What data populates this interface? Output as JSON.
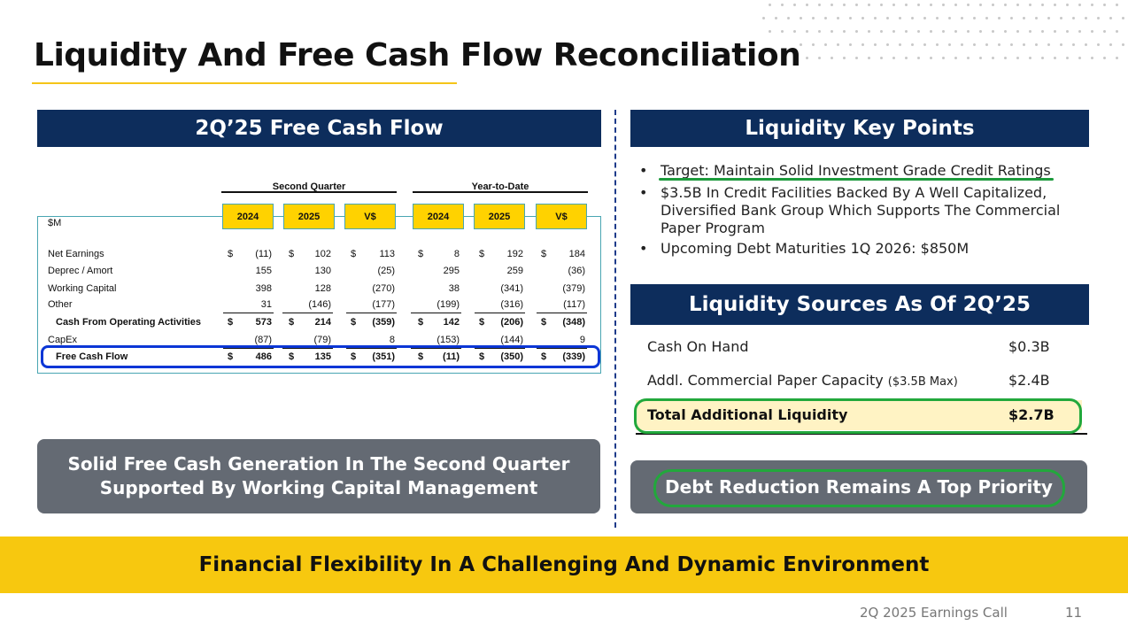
{
  "slide_title": "Liquidity And Free Cash Flow Reconciliation",
  "left_panel": {
    "header": "2Q’25 Free Cash Flow",
    "table": {
      "group_headers": [
        "Second Quarter",
        "Year-to-Date"
      ],
      "columns": [
        "2024",
        "2025",
        "V$",
        "2024",
        "2025",
        "V$"
      ],
      "unit_label": "$M",
      "rows": [
        {
          "label": "Net Earnings",
          "values": [
            "(11)",
            "102",
            "113",
            "8",
            "192",
            "184"
          ]
        },
        {
          "label": "Deprec / Amort",
          "values": [
            "155",
            "130",
            "(25)",
            "295",
            "259",
            "(36)"
          ]
        },
        {
          "label": "Working Capital",
          "values": [
            "398",
            "128",
            "(270)",
            "38",
            "(341)",
            "(379)"
          ]
        },
        {
          "label": "Other",
          "values": [
            "31",
            "(146)",
            "(177)",
            "(199)",
            "(316)",
            "(117)"
          ]
        },
        {
          "label": "Cash From Operating Activities",
          "values": [
            "573",
            "214",
            "(359)",
            "142",
            "(206)",
            "(348)"
          ]
        },
        {
          "label": "CapEx",
          "values": [
            "(87)",
            "(79)",
            "8",
            "(153)",
            "(144)",
            "9"
          ]
        },
        {
          "label": "Free Cash Flow",
          "values": [
            "486",
            "135",
            "(351)",
            "(11)",
            "(350)",
            "(339)"
          ]
        }
      ],
      "currency_symbol": "$"
    },
    "callout_line1": "Solid Free Cash Generation In The Second Quarter",
    "callout_line2": "Supported By Working Capital Management"
  },
  "right_panel": {
    "key_points_header": "Liquidity Key Points",
    "key_points": [
      "Target: Maintain Solid Investment Grade Credit Ratings",
      "$3.5B In Credit Facilities Backed By A Well Capitalized, Diversified Bank Group Which Supports The Commercial Paper Program",
      "Upcoming Debt Maturities 1Q 2026: $850M"
    ],
    "bullet": "•",
    "sources_header": "Liquidity Sources As Of 2Q’25",
    "sources": [
      {
        "label": "Cash On Hand",
        "note": "",
        "value": "$0.3B"
      },
      {
        "label": "Addl. Commercial Paper Capacity",
        "note": "($3.5B Max)",
        "value": "$2.4B"
      }
    ],
    "total_label": "Total Additional Liquidity",
    "total_value": "$2.7B",
    "callout": "Debt Reduction Remains A Top Priority"
  },
  "banner": "Financial Flexibility In A Challenging And Dynamic Environment",
  "footer": {
    "event": "2Q 2025 Earnings Call",
    "page": "11"
  },
  "colors": {
    "navy": "#0d2d5c",
    "gold": "#f7c80f",
    "grey_box": "#646a73",
    "green_highlight": "#22a83c",
    "blue_highlight": "#0b36d6"
  }
}
